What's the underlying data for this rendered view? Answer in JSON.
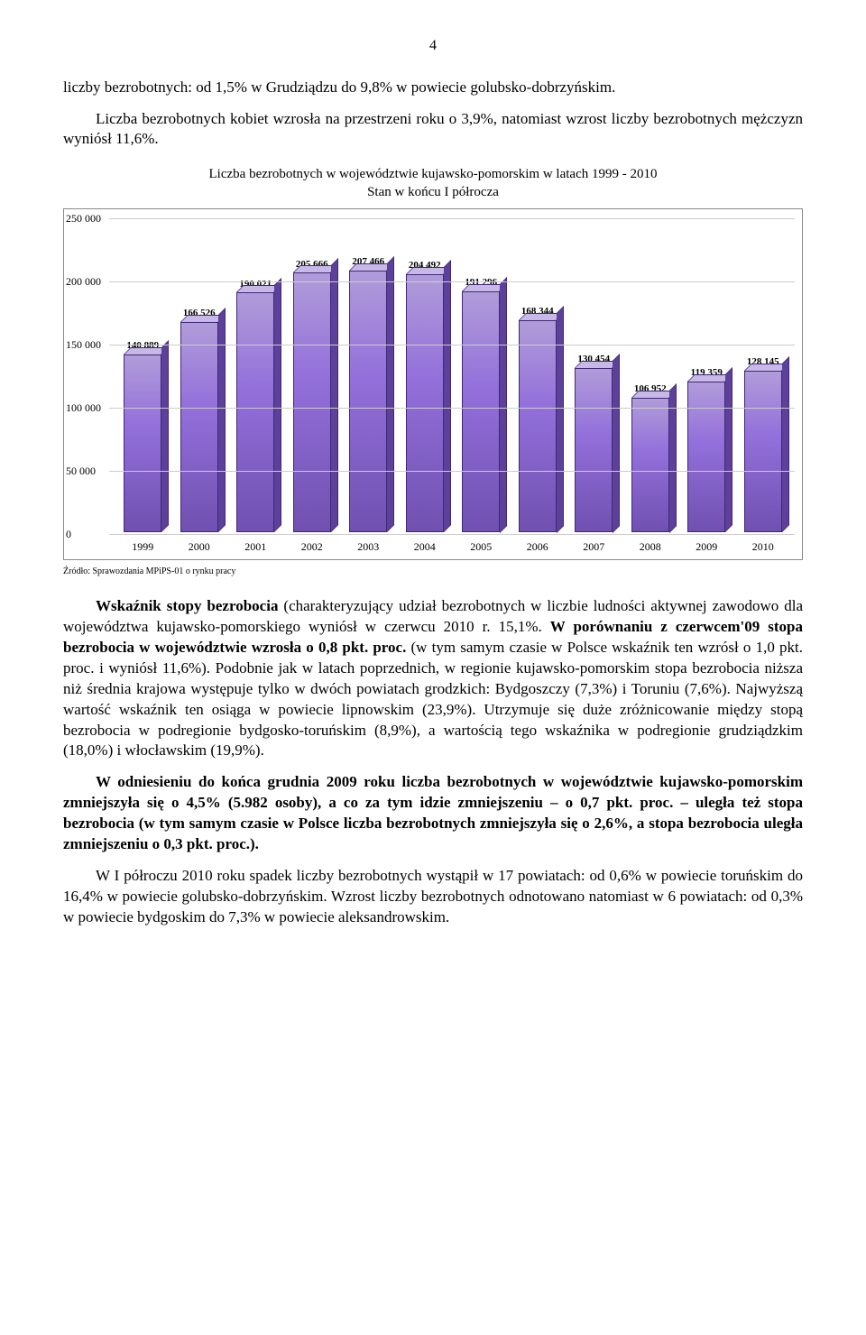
{
  "page_number": "4",
  "intro": {
    "p1": "liczby bezrobotnych: od 1,5% w Grudziądzu do 9,8% w powiecie golubsko-dobrzyńskim.",
    "p2": "Liczba bezrobotnych kobiet wzrosła na przestrzeni roku o 3,9%, natomiast wzrost liczby bezrobotnych mężczyzn wyniósł 11,6%."
  },
  "chart": {
    "type": "bar",
    "title_line1": "Liczba bezrobotnych w województwie kujawsko-pomorskim w latach 1999 - 2010",
    "title_line2": "Stan w końcu I półrocza",
    "categories": [
      "1999",
      "2000",
      "2001",
      "2002",
      "2003",
      "2004",
      "2005",
      "2006",
      "2007",
      "2008",
      "2009",
      "2010"
    ],
    "values": [
      140889,
      166526,
      190021,
      205666,
      207466,
      204492,
      191296,
      168344,
      130454,
      106952,
      119359,
      128145
    ],
    "value_labels": [
      "140 889",
      "166 526",
      "190 021",
      "205 666",
      "207 466",
      "204 492",
      "191 296",
      "168 344",
      "130 454",
      "106 952",
      "119 359",
      "128 145"
    ],
    "ymax": 250000,
    "yticks": [
      0,
      50000,
      100000,
      150000,
      200000,
      250000
    ],
    "ytick_labels": [
      "0",
      "50 000",
      "100 000",
      "150 000",
      "200 000",
      "250 000"
    ],
    "bar_color_top": "#c8b8e8",
    "bar_color_front": "#9370db",
    "bar_color_side": "#5c4099",
    "border_color": "#402878",
    "grid_color": "#cccccc",
    "background": "#ffffff",
    "source": "Źródło: Sprawozdania MPiPS-01 o rynku pracy"
  },
  "body": {
    "p3a": "Wskaźnik stopy bezrobocia",
    "p3b": " (charakteryzujący udział bezrobotnych w liczbie ludności aktywnej zawodowo dla województwa kujawsko-pomorskiego wyniósł w czerwcu 2010 r. 15,1%. ",
    "p3c": "W porównaniu z czerwcem'09 stopa bezrobocia w województwie wzrosła o 0,8 pkt. proc.",
    "p3d": " (w tym samym czasie w Polsce wskaźnik ten wzrósł o 1,0 pkt. proc. i wyniósł 11,6%). Podobnie jak w latach poprzednich, w regionie kujawsko-pomorskim stopa bezrobocia niższa niż średnia krajowa występuje tylko w dwóch powiatach grodzkich: Bydgoszczy (7,3%) i Toruniu (7,6%). Najwyższą wartość wskaźnik ten osiąga w powiecie lipnowskim (23,9%). Utrzymuje się duże zróżnicowanie między stopą bezrobocia w podregionie bydgosko-toruńskim (8,9%), a wartością tego wskaźnika w podregionie grudziądzkim (18,0%) i włocławskim (19,9%).",
    "p4": "W odniesieniu do końca grudnia 2009 roku liczba bezrobotnych w województwie kujawsko-pomorskim zmniejszyła się o 4,5% (5.982 osoby), a co za tym idzie zmniejszeniu – o 0,7 pkt. proc. – uległa też stopa bezrobocia (w tym samym czasie w Polsce liczba bezrobotnych zmniejszyła się o 2,6%, a stopa bezrobocia uległa zmniejszeniu o 0,3 pkt. proc.).",
    "p5": "W I półroczu 2010 roku spadek liczby bezrobotnych wystąpił w 17 powiatach: od 0,6% w powiecie toruńskim do 16,4% w powiecie golubsko-dobrzyńskim. Wzrost liczby bezrobotnych odnotowano natomiast w 6 powiatach: od 0,3% w powiecie bydgoskim do 7,3% w powiecie aleksandrowskim."
  }
}
